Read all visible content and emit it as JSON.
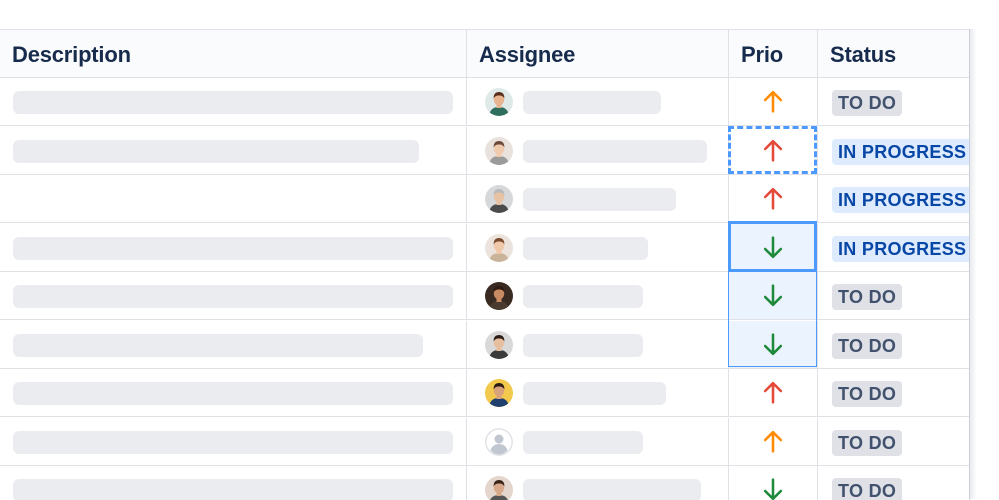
{
  "columns": {
    "description": "Description",
    "assignee": "Assignee",
    "prio": "Prio",
    "status": "Status"
  },
  "rows": [
    {
      "desc_w": 440,
      "avatar": {
        "skin": "#e8b48f",
        "hair": "#5a2e1a",
        "bg": "#dfe9e8",
        "shirt": "#2f6e5e"
      },
      "assg_w": 138,
      "prio": "up",
      "prio_color": "#ff8b00",
      "status": "TO DO",
      "status_kind": "todo"
    },
    {
      "desc_w": 406,
      "avatar": {
        "skin": "#f1c9ad",
        "hair": "#6b4a3a",
        "bg": "#e9e1db",
        "shirt": "#9b9b9b"
      },
      "assg_w": 184,
      "prio": "up",
      "prio_color": "#e5493a",
      "status": "IN PROGRESS",
      "status_kind": "progress"
    },
    {
      "desc_w": 0,
      "avatar": {
        "skin": "#e7c2a3",
        "hair": "#b9b9b9",
        "bg": "#d6d8da",
        "shirt": "#4b4b4b"
      },
      "assg_w": 153,
      "prio": "up",
      "prio_color": "#e5493a",
      "status": "IN PROGRESS",
      "status_kind": "progress"
    },
    {
      "desc_w": 440,
      "avatar": {
        "skin": "#f0c7a8",
        "hair": "#7a4b2e",
        "bg": "#ece4dc",
        "shirt": "#c9b49a"
      },
      "assg_w": 125,
      "prio": "down",
      "prio_color": "#1f8a3b",
      "status": "IN PROGRESS",
      "status_kind": "progress"
    },
    {
      "desc_w": 440,
      "avatar": {
        "skin": "#c98b63",
        "hair": "#2d1a10",
        "bg": "#3a2b22",
        "shirt": "#4a3a30"
      },
      "assg_w": 120,
      "prio": "down",
      "prio_color": "#1f8a3b",
      "status": "TO DO",
      "status_kind": "todo"
    },
    {
      "desc_w": 410,
      "avatar": {
        "skin": "#e6bfa1",
        "hair": "#2b1d16",
        "bg": "#d9d9d9",
        "shirt": "#3b3b3b"
      },
      "assg_w": 120,
      "prio": "down",
      "prio_color": "#1f8a3b",
      "status": "TO DO",
      "status_kind": "todo"
    },
    {
      "desc_w": 440,
      "avatar": {
        "skin": "#d8a27c",
        "hair": "#2a1a12",
        "bg": "#f2c94c",
        "shirt": "#1f3f6e"
      },
      "assg_w": 143,
      "prio": "up",
      "prio_color": "#e5493a",
      "status": "TO DO",
      "status_kind": "todo"
    },
    {
      "desc_w": 440,
      "avatar": {
        "skin": "#c1c7d0",
        "hair": "#c1c7d0",
        "bg": "#dfe1e6",
        "shirt": "#c1c7d0",
        "placeholder": true
      },
      "assg_w": 120,
      "prio": "up",
      "prio_color": "#ff8b00",
      "status": "TO DO",
      "status_kind": "todo"
    },
    {
      "desc_w": 440,
      "avatar": {
        "skin": "#d7a98a",
        "hair": "#3a2418",
        "bg": "#e4d6cc",
        "shirt": "#555555"
      },
      "assg_w": 178,
      "prio": "down",
      "prio_color": "#1f8a3b",
      "status": "TO DO",
      "status_kind": "todo"
    }
  ]
}
